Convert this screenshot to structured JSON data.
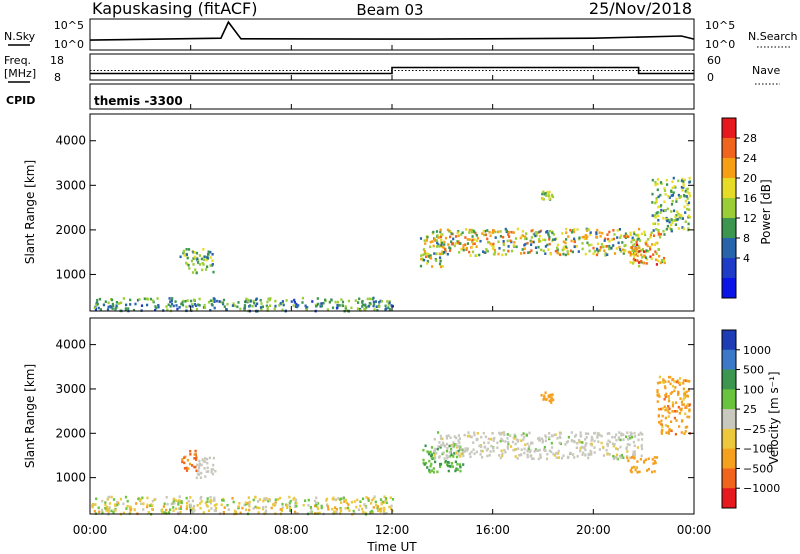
{
  "header": {
    "station": "Kapuskasing (fitACF)",
    "beam": "Beam 03",
    "date": "25/Nov/2018"
  },
  "top_panels": {
    "nsky_label": "N.Sky",
    "nsearch_label": "N.Search",
    "left_ticks": [
      "10^5",
      "10^0"
    ],
    "right_ticks": [
      "10^5",
      "10^0"
    ],
    "freq_label": "Freq.",
    "freq_unit": "[MHz]",
    "freq_ticks": [
      "18",
      "8"
    ],
    "nave_label": "Nave",
    "nave_ticks": [
      "60",
      "0"
    ],
    "cpid_label": "CPID",
    "cpid_text": "themis -3300"
  },
  "power_panel": {
    "ylabel": "Slant Range [km]",
    "yticks": [
      "4000",
      "3000",
      "2000",
      "1000"
    ],
    "cbar_label": "Power [dB]",
    "cbar_ticks": [
      "28",
      "24",
      "20",
      "16",
      "12",
      "8",
      "4"
    ],
    "cbar_colors": [
      "#e6191e",
      "#f0641e",
      "#f5a014",
      "#e6dc28",
      "#9bcd37",
      "#3c9650",
      "#2864aa",
      "#1e3cc8",
      "#0a14e6"
    ]
  },
  "velocity_panel": {
    "ylabel": "Slant Range [km]",
    "yticks": [
      "4000",
      "3000",
      "2000",
      "1000"
    ],
    "cbar_label": "Velocity [m s⁻¹]",
    "cbar_ticks": [
      "1000",
      "500",
      "100",
      "25",
      "−25",
      "−100",
      "−500",
      "−1000"
    ],
    "cbar_colors": [
      "#1e3cb4",
      "#3c78c8",
      "#3c9650",
      "#69c33c",
      "#c8c8be",
      "#ebc83c",
      "#f5a01e",
      "#f0641e",
      "#e6191e"
    ]
  },
  "xaxis": {
    "label": "Time UT",
    "ticks": [
      "00:00",
      "04:00",
      "08:00",
      "12:00",
      "16:00",
      "20:00",
      "00:00"
    ]
  },
  "chart_data": [
    {
      "type": "heatmap",
      "name": "power",
      "xlabel": "Time UT",
      "ylabel": "Slant Range [km]",
      "xlim": [
        0,
        24
      ],
      "ylim": [
        180,
        4600
      ],
      "zlabel": "Power [dB]",
      "zlim": [
        0,
        30
      ],
      "regions": [
        {
          "t": [
            0.0,
            12.0
          ],
          "r": [
            200,
            500
          ],
          "p": [
            6,
            16
          ]
        },
        {
          "t": [
            3.5,
            4.9
          ],
          "r": [
            1050,
            1600
          ],
          "p": [
            8,
            20
          ]
        },
        {
          "t": [
            13.1,
            14.0
          ],
          "r": [
            1200,
            2000
          ],
          "p": [
            8,
            24
          ]
        },
        {
          "t": [
            13.7,
            21.9
          ],
          "r": [
            1450,
            2050
          ],
          "p": [
            8,
            26
          ]
        },
        {
          "t": [
            21.4,
            22.8
          ],
          "r": [
            1200,
            2000
          ],
          "p": [
            12,
            28
          ]
        },
        {
          "t": [
            22.3,
            23.8
          ],
          "r": [
            2000,
            3200
          ],
          "p": [
            8,
            20
          ]
        },
        {
          "t": [
            17.9,
            18.4
          ],
          "r": [
            2700,
            2900
          ],
          "p": [
            10,
            20
          ]
        }
      ]
    },
    {
      "type": "heatmap",
      "name": "velocity",
      "xlabel": "Time UT",
      "ylabel": "Slant Range [km]",
      "xlim": [
        0,
        24
      ],
      "ylim": [
        180,
        4600
      ],
      "zlabel": "Velocity [m s⁻¹]",
      "zlim": [
        -1000,
        1000
      ],
      "regions": [
        {
          "t": [
            0.0,
            12.0
          ],
          "r": [
            200,
            600
          ],
          "v": [
            -120,
            60
          ]
        },
        {
          "t": [
            3.6,
            4.2
          ],
          "r": [
            1150,
            1650
          ],
          "v": [
            -800,
            -200
          ]
        },
        {
          "t": [
            4.2,
            5.0
          ],
          "r": [
            1000,
            1500
          ],
          "v": [
            -20,
            20
          ]
        },
        {
          "t": [
            13.2,
            14.8
          ],
          "r": [
            1150,
            1750
          ],
          "v": [
            30,
            150
          ]
        },
        {
          "t": [
            13.6,
            21.9
          ],
          "r": [
            1450,
            2050
          ],
          "v": [
            -30,
            30
          ]
        },
        {
          "t": [
            21.3,
            22.5
          ],
          "r": [
            1150,
            1500
          ],
          "v": [
            -300,
            -80
          ]
        },
        {
          "t": [
            22.5,
            23.8
          ],
          "r": [
            2000,
            3300
          ],
          "v": [
            -600,
            -30
          ]
        },
        {
          "t": [
            17.9,
            18.4
          ],
          "r": [
            2700,
            2950
          ],
          "v": [
            -400,
            -100
          ]
        }
      ]
    },
    {
      "type": "line",
      "name": "noise",
      "xlabel": "Time UT",
      "series": [
        {
          "label": "N.Sky",
          "x": [
            0,
            5.2,
            5.5,
            6,
            13.5,
            20,
            23.5,
            24
          ],
          "y": [
            0.32,
            0.38,
            0.9,
            0.36,
            0.35,
            0.38,
            0.45,
            0.35
          ]
        }
      ]
    },
    {
      "type": "line",
      "name": "frequency",
      "xlabel": "Time UT",
      "ylabel": "Freq. [MHz]",
      "ylim": [
        8,
        18
      ],
      "series": [
        {
          "label": "Freq.",
          "x": [
            0,
            12,
            12,
            21.8,
            21.8,
            24
          ],
          "y": [
            10.5,
            10.5,
            12.8,
            12.8,
            10.5,
            10.5
          ]
        }
      ]
    },
    {
      "type": "line",
      "name": "nave",
      "xlabel": "Time UT",
      "ylabel": "Nave",
      "ylim": [
        0,
        60
      ],
      "series": [
        {
          "label": "Nave",
          "x": [
            0,
            24
          ],
          "y": [
            22,
            22
          ]
        }
      ]
    }
  ]
}
